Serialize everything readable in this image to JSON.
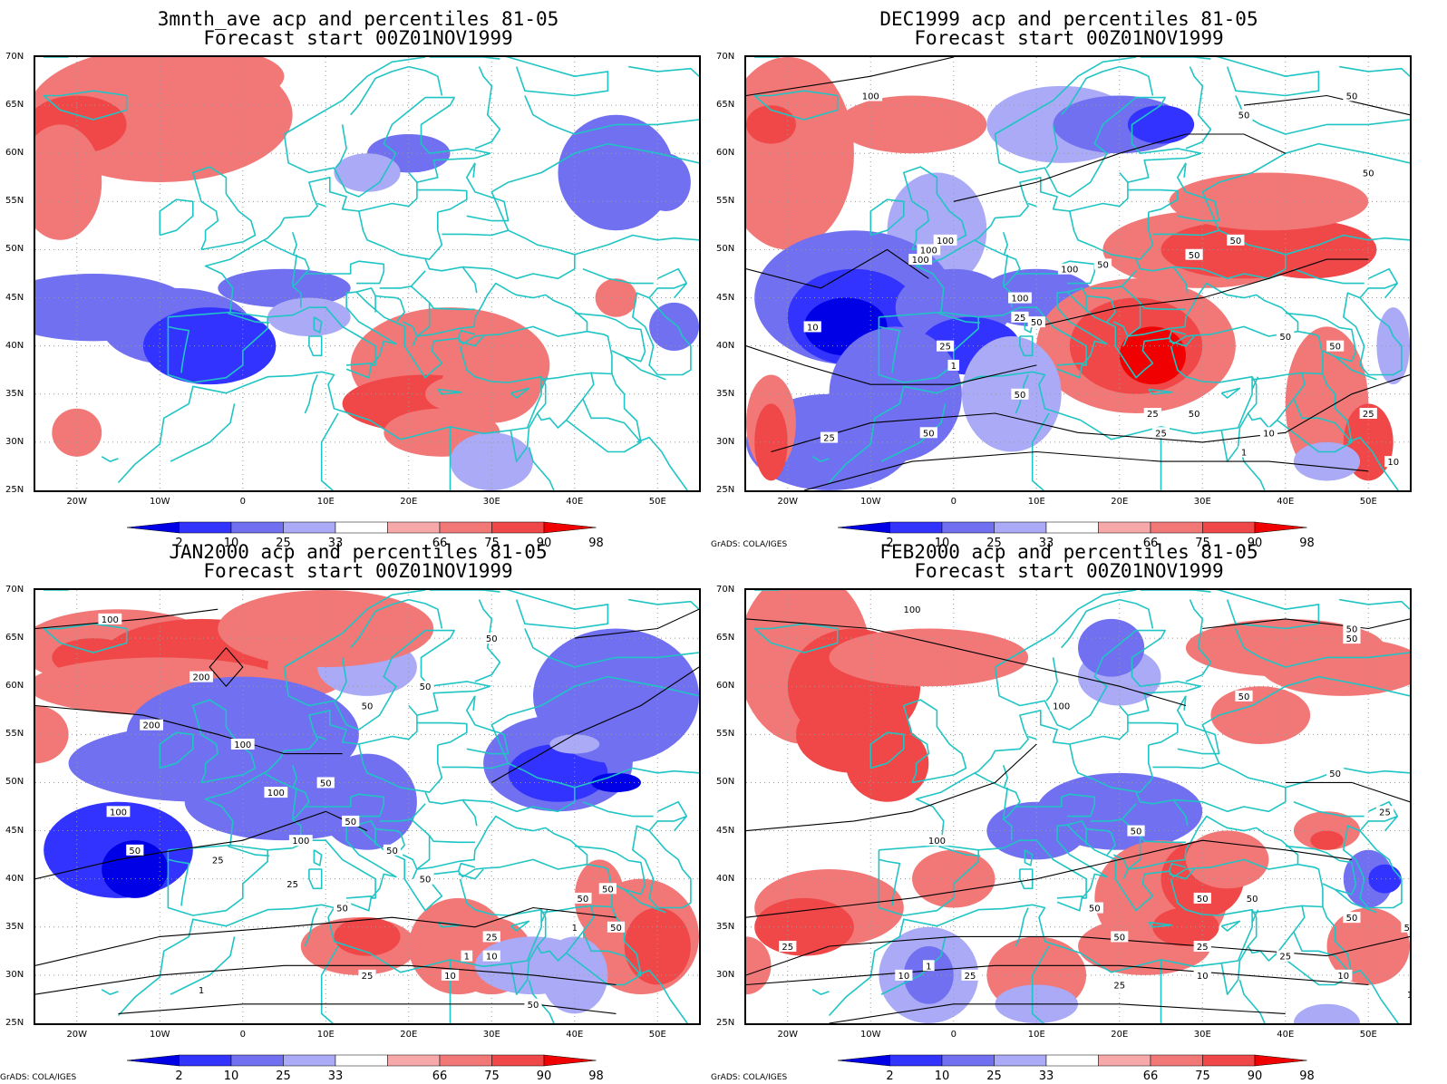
{
  "colors": {
    "coast": "#20c4c4",
    "contour": "#000000",
    "grid": "#9a9a9a",
    "levels": [
      "#0000e6",
      "#3333ff",
      "#7070f0",
      "#aaaaf7",
      "#ffffff",
      "#f7a8a8",
      "#f27878",
      "#f04848",
      "#f00000"
    ]
  },
  "lat_labels": [
    "70N",
    "65N",
    "60N",
    "55N",
    "50N",
    "45N",
    "40N",
    "35N",
    "30N",
    "25N"
  ],
  "lon_labels": [
    "20W",
    "10W",
    "0",
    "10E",
    "20E",
    "30E",
    "40E",
    "50E"
  ],
  "colorbar_labels": [
    "2",
    "10",
    "25",
    "33",
    "66",
    "75",
    "90",
    "98"
  ],
  "credit": "GrADS: COLA/IGES",
  "panels": [
    {
      "title": "3mnth_ave acp and percentiles 81-05",
      "subtitle": "Forecast start 00Z01NOV1999",
      "credit": "",
      "contour_labels": []
    },
    {
      "title": "DEC1999 acp and percentiles 81-05",
      "subtitle": "Forecast start 00Z01NOV1999",
      "credit": "GrADS: COLA/IGES",
      "contour_labels": [
        "100",
        "50",
        "50",
        "50",
        "100",
        "100",
        "100",
        "50",
        "50",
        "100",
        "50",
        "100",
        "50",
        "25",
        "25",
        "10",
        "1",
        "50",
        "50",
        "25",
        "50",
        "25",
        "10",
        "1",
        "25",
        "10",
        "50",
        "50",
        "25"
      ]
    },
    {
      "title": "JAN2000 acp and percentiles 81-05",
      "subtitle": "Forecast start 00Z01NOV1999",
      "credit": "GrADS: COLA/IGES",
      "contour_labels": [
        "100",
        "200",
        "200",
        "50",
        "50",
        "50",
        "100",
        "50",
        "100",
        "100",
        "50",
        "100",
        "50",
        "50",
        "50",
        "50",
        "25",
        "25",
        "50",
        "50",
        "25",
        "10",
        "10",
        "1",
        "1",
        "50",
        "50",
        "25",
        "1"
      ]
    },
    {
      "title": "FEB2000 acp and percentiles 81-05",
      "subtitle": "Forecast start 00Z01NOV1999",
      "credit": "GrADS: COLA/IGES",
      "contour_labels": [
        "100",
        "50",
        "50",
        "50",
        "100",
        "50",
        "25",
        "100",
        "50",
        "50",
        "50",
        "50",
        "25",
        "10",
        "1",
        "25",
        "10",
        "50",
        "50",
        "50",
        "25",
        "10",
        "25",
        "1",
        "25"
      ]
    }
  ]
}
